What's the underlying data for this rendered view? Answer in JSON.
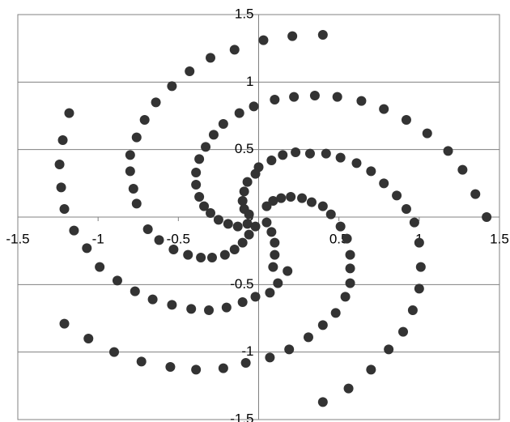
{
  "chart_data": {
    "type": "scatter",
    "color": "#333333",
    "grid": true,
    "xlim": [
      -1.5,
      1.5
    ],
    "ylim": [
      -1.5,
      1.5
    ],
    "xticks": [
      -1.5,
      -1,
      -0.5,
      0.5,
      1,
      1.5
    ],
    "yticks": [
      -1.5,
      -1,
      -0.5,
      0,
      0.5,
      1,
      1.5
    ],
    "x": [
      0.4,
      0.21,
      0.03,
      -0.15,
      -0.3,
      -0.43,
      -0.54,
      -0.64,
      -0.71,
      -0.76,
      -0.8,
      -0.8,
      -0.78,
      -0.76,
      -0.69,
      -0.62,
      -0.53,
      -0.44,
      -0.36,
      -0.29,
      -0.21,
      -0.15,
      -0.1,
      -0.06,
      -0.02,
      -0.03,
      0.1,
      0.22,
      0.35,
      0.49,
      0.64,
      0.78,
      0.92,
      1.05,
      1.18,
      1.27,
      1.35,
      1.42,
      -0.12,
      -0.22,
      -0.28,
      -0.33,
      -0.37,
      -0.39,
      -0.39,
      -0.37,
      -0.34,
      -0.3,
      -0.25,
      -0.19,
      -0.13,
      -0.07,
      0.0,
      0.08,
      0.15,
      0.23,
      0.32,
      0.42,
      0.51,
      0.61,
      0.7,
      0.78,
      0.86,
      0.92,
      0.97,
      1.0,
      1.01,
      1.0,
      0.96,
      0.9,
      0.81,
      0.7,
      0.56,
      0.4,
      -0.02,
      -0.07,
      -0.09,
      -0.1,
      -0.09,
      -0.06,
      0.05,
      0.09,
      0.14,
      0.2,
      0.27,
      0.33,
      0.4,
      0.45,
      0.51,
      0.55,
      0.57,
      0.57,
      0.57,
      0.54,
      0.48,
      0.4,
      0.31,
      0.19,
      0.07,
      -0.08,
      0.05,
      0.08,
      0.1,
      0.1,
      0.09,
      -1.21,
      -1.06,
      -0.9,
      -0.73,
      -0.55,
      -0.39,
      -0.22,
      -1.15,
      -1.07,
      -0.99,
      -0.88,
      -0.77,
      -0.66,
      -0.54,
      -0.42,
      -0.31,
      -0.2,
      -0.1,
      -0.02,
      0.07,
      0.12,
      0.18,
      -1.18,
      -1.22,
      -1.24,
      -1.23,
      -1.21
    ],
    "values": [
      1.35,
      1.34,
      1.31,
      1.24,
      1.18,
      1.08,
      0.97,
      0.85,
      0.72,
      0.59,
      0.46,
      0.34,
      0.21,
      0.1,
      -0.09,
      -0.17,
      -0.24,
      -0.28,
      -0.3,
      -0.3,
      -0.28,
      -0.24,
      -0.19,
      -0.13,
      -0.07,
      0.82,
      0.87,
      0.89,
      0.9,
      0.89,
      0.86,
      0.8,
      0.72,
      0.62,
      0.49,
      0.35,
      0.17,
      0.0,
      0.77,
      0.69,
      0.61,
      0.52,
      0.43,
      0.33,
      0.24,
      0.15,
      0.08,
      0.03,
      -0.02,
      -0.05,
      -0.07,
      -0.05,
      0.37,
      0.42,
      0.46,
      0.48,
      0.47,
      0.47,
      0.44,
      0.4,
      0.34,
      0.25,
      0.16,
      0.06,
      -0.04,
      -0.19,
      -0.37,
      -0.53,
      -0.69,
      -0.85,
      -0.98,
      -1.13,
      -1.27,
      -1.37,
      0.32,
      0.26,
      0.19,
      0.12,
      0.06,
      0.02,
      0.08,
      0.12,
      0.14,
      0.15,
      0.14,
      0.11,
      0.08,
      0.02,
      -0.07,
      -0.16,
      -0.28,
      -0.38,
      -0.49,
      -0.59,
      -0.71,
      -0.8,
      -0.89,
      -0.98,
      -1.04,
      -1.08,
      -0.04,
      -0.11,
      -0.19,
      -0.28,
      -0.37,
      -0.79,
      -0.9,
      -1.0,
      -1.07,
      -1.11,
      -1.13,
      -1.12,
      -0.1,
      -0.23,
      -0.37,
      -0.47,
      -0.55,
      -0.61,
      -0.65,
      -0.68,
      -0.69,
      -0.67,
      -0.63,
      -0.59,
      -0.56,
      -0.49,
      -0.4,
      0.77,
      0.57,
      0.39,
      0.22,
      0.06
    ]
  }
}
